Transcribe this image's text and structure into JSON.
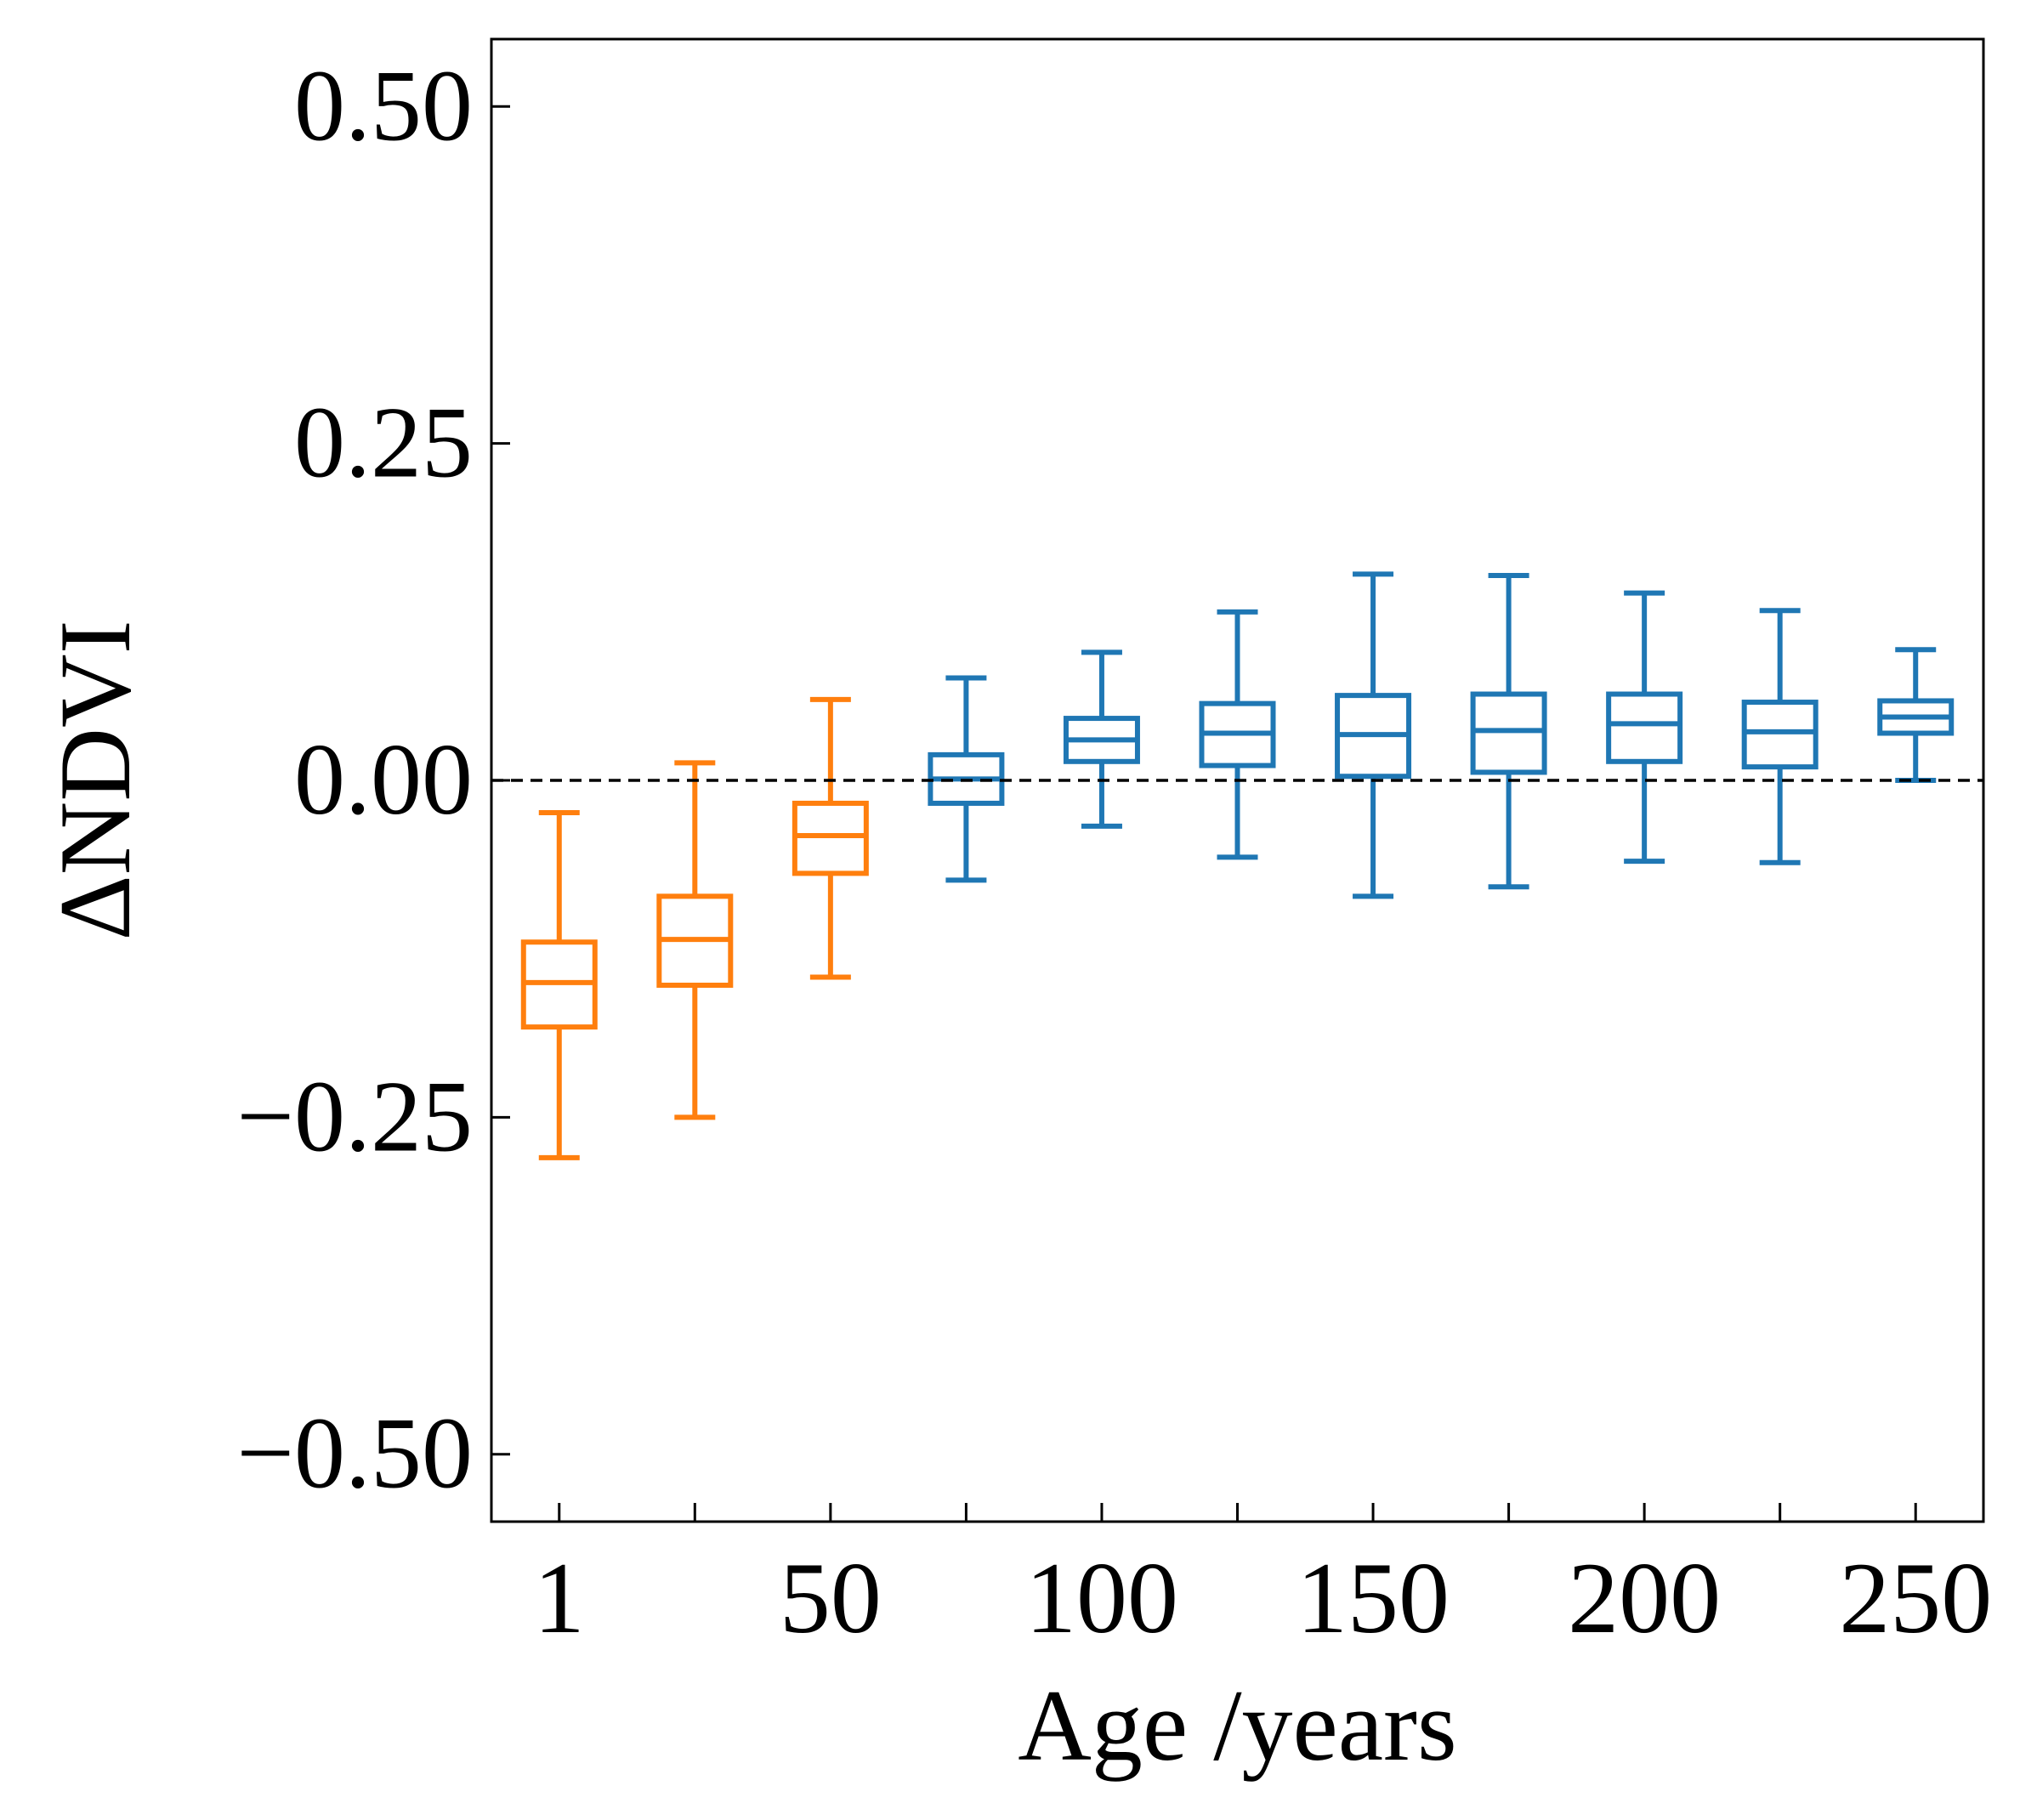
{
  "chart_data": {
    "type": "box",
    "title": "",
    "xlabel": "Age /years",
    "ylabel": "ΔNDVI",
    "ylim": [
      -0.55,
      0.55
    ],
    "yticks": [
      -0.5,
      -0.25,
      0.0,
      0.25,
      0.5
    ],
    "ytick_labels": [
      "−0.50",
      "−0.25",
      "0.00",
      "0.25",
      "0.50"
    ],
    "xlim": [
      -0.5,
      10.5
    ],
    "xtick_positions": [
      0,
      1,
      2,
      3,
      4,
      5,
      6,
      7,
      8,
      9,
      10
    ],
    "xtick_labels": [
      "1",
      "",
      "50",
      "",
      "100",
      "",
      "150",
      "",
      "200",
      "",
      "250"
    ],
    "reference_line": {
      "y": 0.0,
      "style": "dashed",
      "color": "#000000"
    },
    "grid": false,
    "boxes": [
      {
        "pos": 0,
        "whislo": -0.28,
        "q1": -0.183,
        "med": -0.15,
        "q3": -0.12,
        "whishi": -0.024,
        "color": "#ff7f0e"
      },
      {
        "pos": 1,
        "whislo": -0.25,
        "q1": -0.152,
        "med": -0.118,
        "q3": -0.086,
        "whishi": 0.013,
        "color": "#ff7f0e"
      },
      {
        "pos": 2,
        "whislo": -0.146,
        "q1": -0.069,
        "med": -0.041,
        "q3": -0.017,
        "whishi": 0.06,
        "color": "#ff7f0e"
      },
      {
        "pos": 3,
        "whislo": -0.074,
        "q1": -0.017,
        "med": 0.001,
        "q3": 0.019,
        "whishi": 0.076,
        "color": "#1f77b4"
      },
      {
        "pos": 4,
        "whislo": -0.034,
        "q1": 0.014,
        "med": 0.03,
        "q3": 0.046,
        "whishi": 0.095,
        "color": "#1f77b4"
      },
      {
        "pos": 5,
        "whislo": -0.057,
        "q1": 0.011,
        "med": 0.035,
        "q3": 0.057,
        "whishi": 0.125,
        "color": "#1f77b4"
      },
      {
        "pos": 6,
        "whislo": -0.086,
        "q1": 0.003,
        "med": 0.034,
        "q3": 0.063,
        "whishi": 0.153,
        "color": "#1f77b4"
      },
      {
        "pos": 7,
        "whislo": -0.079,
        "q1": 0.006,
        "med": 0.037,
        "q3": 0.064,
        "whishi": 0.152,
        "color": "#1f77b4"
      },
      {
        "pos": 8,
        "whislo": -0.06,
        "q1": 0.014,
        "med": 0.042,
        "q3": 0.064,
        "whishi": 0.139,
        "color": "#1f77b4"
      },
      {
        "pos": 9,
        "whislo": -0.061,
        "q1": 0.01,
        "med": 0.036,
        "q3": 0.058,
        "whishi": 0.126,
        "color": "#1f77b4"
      },
      {
        "pos": 10,
        "whislo": 0.0,
        "q1": 0.035,
        "med": 0.047,
        "q3": 0.059,
        "whishi": 0.097,
        "color": "#1f77b4"
      }
    ]
  }
}
